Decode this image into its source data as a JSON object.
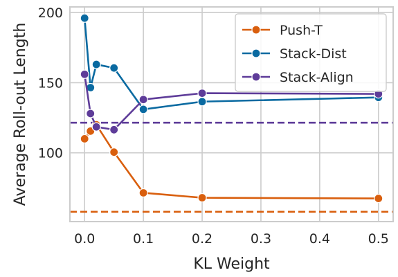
{
  "chart_data": {
    "type": "line",
    "xlabel": "KL Weight",
    "ylabel": "Average Roll-out Length",
    "xlim": [
      -0.025,
      0.525
    ],
    "ylim": [
      51,
      204
    ],
    "xticks": [
      0.0,
      0.1,
      0.2,
      0.3,
      0.4,
      0.5
    ],
    "xtick_labels": [
      "0.0",
      "0.1",
      "0.2",
      "0.3",
      "0.4",
      "0.5"
    ],
    "yticks": [
      100,
      150,
      200
    ],
    "ytick_labels": [
      "100",
      "150",
      "200"
    ],
    "grid": true,
    "legend_position": "top-right",
    "series": [
      {
        "name": "Push-T",
        "color": "#d95f0e",
        "marker": "circle",
        "x": [
          0.0,
          0.01,
          0.02,
          0.05,
          0.1,
          0.2,
          0.5
        ],
        "y": [
          110,
          115.5,
          120,
          100.5,
          71.5,
          68,
          67.5
        ],
        "baseline": 58
      },
      {
        "name": "Stack-Dist",
        "color": "#0a6aa1",
        "marker": "circle",
        "x": [
          0.0,
          0.01,
          0.02,
          0.05,
          0.1,
          0.2,
          0.5
        ],
        "y": [
          196,
          146.5,
          163,
          160.5,
          131,
          136.5,
          139.5
        ]
      },
      {
        "name": "Stack-Align",
        "color": "#5e3c99",
        "marker": "circle",
        "x": [
          0.0,
          0.01,
          0.02,
          0.05,
          0.1,
          0.2,
          0.5
        ],
        "y": [
          156,
          128,
          118.5,
          116.5,
          138,
          142.5,
          142
        ],
        "baseline": 121.5
      }
    ]
  }
}
